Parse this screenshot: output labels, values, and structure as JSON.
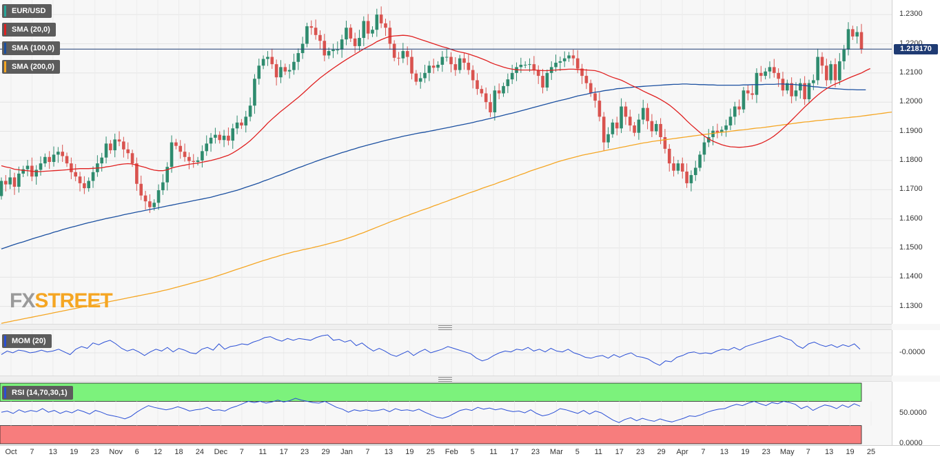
{
  "indicators": {
    "symbol": {
      "label": "EUR/USD",
      "color": "#26a69a"
    },
    "sma20": {
      "label": "SMA (20,0)",
      "color": "#e02020"
    },
    "sma100": {
      "label": "SMA (100,0)",
      "color": "#1a4fa0"
    },
    "sma200": {
      "label": "SMA (200,0)",
      "color": "#f5a623"
    },
    "mom": {
      "label": "MOM (20)",
      "color": "#2a4fd6"
    },
    "rsi": {
      "label": "RSI (14,70,30,1)",
      "color": "#7bf07b"
    }
  },
  "logo": {
    "part1": "FX",
    "part2": "STREET"
  },
  "last_price": "1.218170",
  "chart_data": [
    {
      "type": "candlestick",
      "instrument": "EUR/USD",
      "yticks": [
        "1.2300",
        "1.2200",
        "1.2100",
        "1.2000",
        "1.1900",
        "1.1800",
        "1.1700",
        "1.1600",
        "1.1500",
        "1.1400",
        "1.1300"
      ],
      "ylim": [
        1.124,
        1.235
      ],
      "xticks": [
        "Oct",
        "7",
        "13",
        "19",
        "23",
        "Nov",
        "6",
        "12",
        "18",
        "24",
        "Dec",
        "7",
        "11",
        "17",
        "23",
        "29",
        "Jan",
        "7",
        "13",
        "19",
        "25",
        "Feb",
        "5",
        "11",
        "17",
        "23",
        "Mar",
        "5",
        "11",
        "17",
        "23",
        "29",
        "Apr",
        "7",
        "13",
        "19",
        "23",
        "May",
        "7",
        "13",
        "19",
        "25"
      ],
      "close_start": 1.1678,
      "closes": [
        1.173,
        1.1718,
        1.1742,
        1.171,
        1.1755,
        1.177,
        1.1782,
        1.1745,
        1.1768,
        1.179,
        1.1812,
        1.1795,
        1.182,
        1.183,
        1.1815,
        1.179,
        1.176,
        1.1745,
        1.1722,
        1.1705,
        1.173,
        1.176,
        1.179,
        1.181,
        1.1858,
        1.1835,
        1.1872,
        1.1865,
        1.1838,
        1.1825,
        1.179,
        1.172,
        1.168,
        1.166,
        1.164,
        1.1655,
        1.1698,
        1.1725,
        1.1778,
        1.1862,
        1.185,
        1.183,
        1.1812,
        1.1798,
        1.1795,
        1.18,
        1.1832,
        1.1858,
        1.1878,
        1.1888,
        1.187,
        1.1885,
        1.1868,
        1.191,
        1.193,
        1.192,
        1.195,
        1.1988,
        1.208,
        1.2125,
        1.2148,
        1.2155,
        1.213,
        1.2085,
        1.212,
        1.2105,
        1.211,
        1.2138,
        1.2168,
        1.22,
        1.226,
        1.2255,
        1.223,
        1.221,
        1.216,
        1.2175,
        1.218,
        1.218,
        1.2215,
        1.2255,
        1.2218,
        1.2192,
        1.222,
        1.2278,
        1.2235,
        1.2248,
        1.23,
        1.227,
        1.2255,
        1.22,
        1.2152,
        1.215,
        1.2175,
        1.2155,
        1.2098,
        1.207,
        1.2082,
        1.21,
        1.2125,
        1.2118,
        1.2128,
        1.2155,
        1.2155,
        1.213,
        1.211,
        1.215,
        1.2135,
        1.211,
        1.2075,
        1.2045,
        1.203,
        1.2,
        1.1965,
        1.204,
        1.203,
        1.2055,
        1.2078,
        1.21,
        1.212,
        1.2128,
        1.2128,
        1.213,
        1.211,
        1.209,
        1.205,
        1.21,
        1.212,
        1.2135,
        1.214,
        1.215,
        1.216,
        1.215,
        1.2115,
        1.209,
        1.2065,
        1.203,
        1.2005,
        1.195,
        1.1862,
        1.189,
        1.193,
        1.191,
        1.1985,
        1.195,
        1.192,
        1.1895,
        1.194,
        1.198,
        1.1935,
        1.19,
        1.1925,
        1.188,
        1.184,
        1.179,
        1.1765,
        1.179,
        1.1762,
        1.1722,
        1.175,
        1.1775,
        1.182,
        1.1862,
        1.188,
        1.1902,
        1.1896,
        1.1905,
        1.192,
        1.195,
        1.1985,
        1.1975,
        1.204,
        1.203,
        1.2025,
        1.21,
        1.209,
        1.2105,
        1.212,
        1.21,
        1.208,
        1.204,
        1.2065,
        1.202,
        1.204,
        1.2065,
        1.201,
        1.2065,
        1.2075,
        1.2155,
        1.2125,
        1.2075,
        1.213,
        1.2075,
        1.214,
        1.218,
        1.225,
        1.2225,
        1.224,
        1.2182
      ],
      "sma20": [
        1.1782,
        1.1778,
        1.1775,
        1.177,
        1.1768,
        1.1766,
        1.1765,
        1.1763,
        1.1762,
        1.1762,
        1.1763,
        1.1764,
        1.1765,
        1.1766,
        1.1767,
        1.1768,
        1.177,
        1.1771,
        1.1772,
        1.1772,
        1.1772,
        1.1773,
        1.1774,
        1.1775,
        1.1778,
        1.178,
        1.1783,
        1.1786,
        1.1788,
        1.1789,
        1.1788,
        1.1784,
        1.178,
        1.1776,
        1.1771,
        1.1767,
        1.1765,
        1.1765,
        1.1768,
        1.1774,
        1.1778,
        1.1781,
        1.1784,
        1.1787,
        1.1789,
        1.1791,
        1.1794,
        1.1797,
        1.18,
        1.1804,
        1.1808,
        1.1813,
        1.1818,
        1.1826,
        1.1835,
        1.1845,
        1.1856,
        1.1868,
        1.1882,
        1.1897,
        1.1912,
        1.1928,
        1.1942,
        1.1955,
        1.1968,
        1.198,
        1.1992,
        1.2004,
        1.2016,
        1.2029,
        1.2043,
        1.2057,
        1.207,
        1.2083,
        1.2094,
        1.2105,
        1.2116,
        1.2126,
        1.2136,
        1.2146,
        1.2155,
        1.2164,
        1.2173,
        1.2182,
        1.219,
        1.2198,
        1.2207,
        1.2214,
        1.222,
        1.2225,
        1.2227,
        1.2228,
        1.2229,
        1.2228,
        1.2225,
        1.222,
        1.2215,
        1.221,
        1.2205,
        1.22,
        1.2195,
        1.219,
        1.2186,
        1.2181,
        1.2176,
        1.2172,
        1.2169,
        1.2165,
        1.216,
        1.2155,
        1.2149,
        1.2143,
        1.2136,
        1.213,
        1.2125,
        1.212,
        1.2116,
        1.2113,
        1.2111,
        1.211,
        1.211,
        1.211,
        1.211,
        1.2109,
        1.2108,
        1.2108,
        1.2109,
        1.211,
        1.2111,
        1.2112,
        1.2113,
        1.2113,
        1.2112,
        1.2111,
        1.211,
        1.2109,
        1.2108,
        1.2104,
        1.2098,
        1.2091,
        1.2085,
        1.208,
        1.2075,
        1.2068,
        1.206,
        1.2053,
        1.2046,
        1.2038,
        1.2031,
        1.2024,
        1.2017,
        1.2009,
        1.2,
        1.199,
        1.1978,
        1.1965,
        1.1951,
        1.1936,
        1.1922,
        1.1909,
        1.1896,
        1.1884,
        1.1874,
        1.1866,
        1.186,
        1.1854,
        1.185,
        1.1847,
        1.1846,
        1.1845,
        1.1846,
        1.1848,
        1.185,
        1.1854,
        1.1859,
        1.1866,
        1.1874,
        1.1884,
        1.1896,
        1.1909,
        1.1923,
        1.1938,
        1.1953,
        1.1968,
        1.1983,
        1.1997,
        1.2011,
        1.2024,
        1.2036,
        1.2046,
        1.2055,
        1.2062,
        1.2068,
        1.2075,
        1.2082,
        1.2088,
        1.2094,
        1.21,
        1.2108,
        1.2115
      ],
      "sma100": [
        1.1497,
        1.1502,
        1.1507,
        1.1512,
        1.1517,
        1.1521,
        1.1526,
        1.1531,
        1.1536,
        1.154,
        1.1545,
        1.1549,
        1.1554,
        1.1558,
        1.1563,
        1.1567,
        1.1571,
        1.1575,
        1.1579,
        1.1583,
        1.1587,
        1.159,
        1.1594,
        1.1597,
        1.1601,
        1.1604,
        1.1607,
        1.161,
        1.1614,
        1.1617,
        1.162,
        1.1623,
        1.1626,
        1.1629,
        1.1632,
        1.1635,
        1.1638,
        1.1641,
        1.1644,
        1.1647,
        1.165,
        1.1653,
        1.1656,
        1.1659,
        1.1662,
        1.1665,
        1.1668,
        1.1671,
        1.1674,
        1.1678,
        1.1682,
        1.1686,
        1.169,
        1.1694,
        1.1698,
        1.1703,
        1.1708,
        1.1713,
        1.1718,
        1.1723,
        1.1729,
        1.1734,
        1.174,
        1.1746,
        1.1751,
        1.1757,
        1.1763,
        1.1769,
        1.1775,
        1.178,
        1.1786,
        1.1791,
        1.1797,
        1.1802,
        1.1807,
        1.1812,
        1.1817,
        1.1822,
        1.1827,
        1.1831,
        1.1836,
        1.184,
        1.1845,
        1.1849,
        1.1853,
        1.1857,
        1.1861,
        1.1865,
        1.1869,
        1.1872,
        1.1876,
        1.1879,
        1.1883,
        1.1886,
        1.1889,
        1.1892,
        1.1895,
        1.1897,
        1.19,
        1.1903,
        1.1906,
        1.1909,
        1.1912,
        1.1915,
        1.1918,
        1.1921,
        1.1924,
        1.1927,
        1.193,
        1.1934,
        1.1937,
        1.1941,
        1.1944,
        1.1948,
        1.1951,
        1.1955,
        1.1959,
        1.1962,
        1.1966,
        1.197,
        1.1974,
        1.1978,
        1.1982,
        1.1986,
        1.199,
        1.1994,
        1.1998,
        1.2002,
        1.2006,
        1.2009,
        1.2013,
        1.2017,
        1.2021,
        1.2024,
        1.2027,
        1.2031,
        1.2034,
        1.2036,
        1.2039,
        1.2041,
        1.2043,
        1.2046,
        1.2047,
        1.2049,
        1.205,
        1.2052,
        1.2053,
        1.2054,
        1.2055,
        1.2056,
        1.2057,
        1.2058,
        1.2059,
        1.206,
        1.2061,
        1.2061,
        1.2062,
        1.2062,
        1.2061,
        1.2061,
        1.206,
        1.206,
        1.2059,
        1.2059,
        1.2058,
        1.2058,
        1.2058,
        1.2058,
        1.2058,
        1.2058,
        1.2059,
        1.2059,
        1.206,
        1.206,
        1.206,
        1.2061,
        1.2061,
        1.2061,
        1.2062,
        1.2062,
        1.2061,
        1.2061,
        1.206,
        1.2058,
        1.2057,
        1.2055,
        1.2053,
        1.2052,
        1.205,
        1.2049,
        1.2047,
        1.2046,
        1.2045,
        1.2044,
        1.2043,
        1.2043,
        1.2042,
        1.2042,
        1.2042
      ],
      "sma200": [
        1.1242,
        1.1245,
        1.1248,
        1.1251,
        1.1254,
        1.1257,
        1.126,
        1.1263,
        1.1266,
        1.1269,
        1.1272,
        1.1275,
        1.1278,
        1.1281,
        1.1284,
        1.1287,
        1.129,
        1.1293,
        1.1296,
        1.1299,
        1.1302,
        1.1305,
        1.1308,
        1.1311,
        1.1314,
        1.1317,
        1.132,
        1.1323,
        1.1326,
        1.1329,
        1.1332,
        1.1335,
        1.1338,
        1.1341,
        1.1344,
        1.1347,
        1.135,
        1.1354,
        1.1357,
        1.1361,
        1.1365,
        1.1369,
        1.1373,
        1.1377,
        1.1381,
        1.1385,
        1.1389,
        1.1393,
        1.1397,
        1.1402,
        1.1407,
        1.1412,
        1.1417,
        1.1422,
        1.1427,
        1.1432,
        1.1437,
        1.1442,
        1.1447,
        1.1452,
        1.1457,
        1.1461,
        1.1466,
        1.147,
        1.1475,
        1.1479,
        1.1483,
        1.1487,
        1.149,
        1.1494,
        1.1497,
        1.15,
        1.1504,
        1.1507,
        1.1511,
        1.1515,
        1.1519,
        1.1523,
        1.1527,
        1.1532,
        1.1537,
        1.1542,
        1.1548,
        1.1553,
        1.1559,
        1.1565,
        1.1571,
        1.1577,
        1.1583,
        1.1589,
        1.1595,
        1.16,
        1.1606,
        1.1611,
        1.1617,
        1.1622,
        1.1628,
        1.1633,
        1.1638,
        1.1644,
        1.1649,
        1.1655,
        1.166,
        1.1666,
        1.1671,
        1.1677,
        1.1682,
        1.1688,
        1.1693,
        1.1698,
        1.1704,
        1.1709,
        1.1714,
        1.1719,
        1.1725,
        1.173,
        1.1735,
        1.1741,
        1.1746,
        1.1752,
        1.1757,
        1.1763,
        1.1768,
        1.1773,
        1.1778,
        1.1783,
        1.1788,
        1.1793,
        1.1798,
        1.1802,
        1.1806,
        1.181,
        1.1814,
        1.1818,
        1.1821,
        1.1824,
        1.1827,
        1.183,
        1.1833,
        1.1836,
        1.1839,
        1.1842,
        1.1845,
        1.1848,
        1.1851,
        1.1854,
        1.1857,
        1.186,
        1.1862,
        1.1865,
        1.1867,
        1.1869,
        1.1871,
        1.1873,
        1.1875,
        1.1877,
        1.1879,
        1.1881,
        1.1883,
        1.1885,
        1.1887,
        1.1889,
        1.1891,
        1.1893,
        1.1895,
        1.1897,
        1.1898,
        1.19,
        1.1902,
        1.1904,
        1.1905,
        1.1907,
        1.1909,
        1.1911,
        1.1912,
        1.1914,
        1.1916,
        1.1918,
        1.192,
        1.1922,
        1.1924,
        1.1926,
        1.1928,
        1.193,
        1.1932,
        1.1933,
        1.1935,
        1.1937,
        1.1938,
        1.194,
        1.1941,
        1.1943,
        1.1944,
        1.1946,
        1.1947,
        1.1949,
        1.195,
        1.1952,
        1.1954,
        1.1956,
        1.1958,
        1.196,
        1.1962,
        1.1964,
        1.1966
      ]
    },
    {
      "type": "line",
      "name": "MOM (20)",
      "yticks": [
        "-0.0000"
      ],
      "ylim": [
        -1,
        1
      ],
      "values": [
        -0.1,
        0.1,
        0.0,
        0.15,
        0.1,
        0.0,
        0.05,
        0.15,
        0.05,
        0.1,
        0.2,
        0.05,
        -0.1,
        0.2,
        0.35,
        0.25,
        0.55,
        0.45,
        0.6,
        0.7,
        0.5,
        0.25,
        0.1,
        0.2,
        0.05,
        -0.15,
        0.05,
        0.2,
        0.1,
        0.3,
        0.05,
        0.25,
        0.15,
        0.0,
        -0.05,
        0.2,
        0.3,
        0.15,
        0.5,
        0.2,
        0.35,
        0.4,
        0.5,
        0.45,
        0.6,
        0.7,
        0.85,
        0.9,
        0.75,
        0.65,
        0.8,
        0.7,
        0.8,
        0.75,
        0.7,
        0.85,
        0.95,
        1.0,
        0.7,
        0.75,
        0.6,
        0.7,
        0.4,
        0.55,
        0.3,
        0.1,
        0.25,
        0.1,
        -0.1,
        -0.2,
        -0.05,
        0.1,
        -0.15,
        0.05,
        0.2,
        0.0,
        0.1,
        0.2,
        0.35,
        0.25,
        0.15,
        0.05,
        -0.05,
        -0.3,
        -0.45,
        -0.35,
        -0.15,
        0.0,
        0.1,
        0.05,
        0.2,
        0.15,
        0.3,
        0.1,
        0.2,
        0.05,
        0.25,
        0.1,
        0.05,
        0.2,
        0.0,
        -0.1,
        -0.25,
        -0.3,
        -0.2,
        -0.15,
        -0.3,
        -0.1,
        -0.25,
        -0.1,
        0.0,
        -0.2,
        -0.25,
        -0.35,
        -0.55,
        -0.7,
        -0.45,
        -0.5,
        -0.25,
        -0.15,
        0.0,
        0.05,
        -0.05,
        0.0,
        -0.05,
        0.1,
        0.2,
        0.15,
        0.3,
        0.15,
        0.35,
        0.45,
        0.55,
        0.65,
        0.75,
        0.85,
        0.95,
        0.8,
        0.7,
        0.4,
        0.25,
        0.5,
        0.6,
        0.45,
        0.35,
        0.45,
        0.3,
        0.45,
        0.35,
        0.5,
        0.2
      ]
    },
    {
      "type": "line",
      "name": "RSI (14,70,30,1)",
      "yticks": [
        "50.0000",
        "0.0000"
      ],
      "ylim": [
        0,
        100
      ],
      "overbought": 70,
      "oversold": 30,
      "values": [
        52,
        54,
        50,
        56,
        52,
        55,
        53,
        58,
        52,
        55,
        50,
        54,
        51,
        56,
        53,
        49,
        55,
        52,
        48,
        46,
        44,
        41,
        45,
        52,
        58,
        63,
        60,
        58,
        56,
        58,
        61,
        58,
        54,
        56,
        57,
        60,
        55,
        56,
        54,
        59,
        62,
        66,
        70,
        68,
        70,
        67,
        69,
        72,
        69,
        71,
        75,
        72,
        70,
        68,
        67,
        70,
        65,
        60,
        57,
        52,
        56,
        54,
        56,
        54,
        55,
        57,
        53,
        58,
        55,
        56,
        54,
        57,
        52,
        48,
        44,
        42,
        45,
        50,
        55,
        57,
        55,
        60,
        57,
        59,
        56,
        58,
        55,
        53,
        54,
        51,
        56,
        50,
        46,
        48,
        52,
        58,
        56,
        53,
        50,
        55,
        49,
        54,
        51,
        45,
        39,
        35,
        40,
        43,
        38,
        42,
        39,
        37,
        41,
        38,
        36,
        39,
        42,
        46,
        45,
        48,
        52,
        55,
        57,
        58,
        62,
        65,
        63,
        67,
        70,
        66,
        63,
        68,
        66,
        70,
        68,
        65,
        58,
        62,
        55,
        60,
        64,
        62,
        58,
        64,
        60,
        66,
        62
      ]
    }
  ]
}
